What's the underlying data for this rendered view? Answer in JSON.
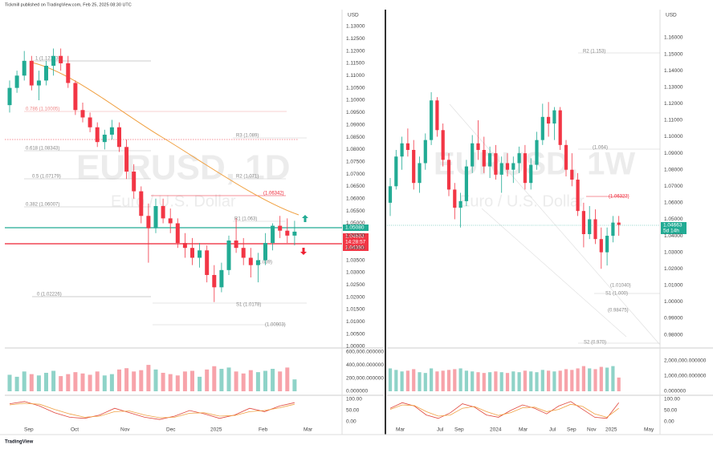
{
  "header": "Tickmill published on TradingView.com, Feb 25, 2025 08:30 UTC",
  "footer": "TradingView",
  "panes": [
    {
      "symbol": "EURUSD, 1D",
      "description": "Euro / U.S. Dollar",
      "currency": "USD",
      "ylim": [
        1.0,
        1.1368
      ],
      "price_axis": [
        "1.13000",
        "1.12500",
        "1.12000",
        "1.11500",
        "1.11000",
        "1.10500",
        "1.10000",
        "1.09500",
        "1.09000",
        "1.08500",
        "1.08000",
        "1.07500",
        "1.07000",
        "1.06500",
        "1.06000",
        "1.05500",
        "1.05000",
        "1.04500",
        "1.04000",
        "1.03500",
        "1.03000",
        "1.02500",
        "1.02000",
        "1.01500",
        "1.01000",
        "1.00500",
        "1.00000"
      ],
      "time_axis": [
        "Sep",
        "Oct",
        "Nov",
        "Dec",
        "2025",
        "Feb",
        "Mar"
      ],
      "price_labels": [
        "1.05080",
        "1.04663",
        "14:28:57",
        "1.04380"
      ],
      "annotations": [
        "1 (1.12123)",
        "0.786 (1.10005)",
        "0.618 (1.08343)",
        "0.5 (1.07179)",
        "0.382 (1.06007)",
        "0 (1.02226)",
        "R3 (1.089)",
        "R2 (1.071)",
        "(1.06342)",
        "R1 (1.063)",
        "(1.039)",
        "S1 (1.0178)",
        "(1.00903)"
      ],
      "ohlc": [
        [
          1.098,
          1.108,
          1.095,
          1.105
        ],
        [
          1.105,
          1.112,
          1.103,
          1.11
        ],
        [
          1.11,
          1.12,
          1.108,
          1.116
        ],
        [
          1.116,
          1.118,
          1.104,
          1.106
        ],
        [
          1.106,
          1.112,
          1.1,
          1.108
        ],
        [
          1.108,
          1.116,
          1.106,
          1.114
        ],
        [
          1.114,
          1.121,
          1.11,
          1.118
        ],
        [
          1.118,
          1.121,
          1.112,
          1.115
        ],
        [
          1.115,
          1.118,
          1.105,
          1.107
        ],
        [
          1.107,
          1.108,
          1.094,
          1.096
        ],
        [
          1.096,
          1.099,
          1.091,
          1.093
        ],
        [
          1.093,
          1.095,
          1.087,
          1.089
        ],
        [
          1.089,
          1.091,
          1.081,
          1.083
        ],
        [
          1.083,
          1.088,
          1.08,
          1.086
        ],
        [
          1.086,
          1.092,
          1.084,
          1.089
        ],
        [
          1.089,
          1.091,
          1.079,
          1.081
        ],
        [
          1.081,
          1.084,
          1.068,
          1.071
        ],
        [
          1.071,
          1.074,
          1.06,
          1.063
        ],
        [
          1.063,
          1.065,
          1.05,
          1.053
        ],
        [
          1.053,
          1.058,
          1.034,
          1.048
        ],
        [
          1.048,
          1.06,
          1.046,
          1.057
        ],
        [
          1.057,
          1.06,
          1.05,
          1.052
        ],
        [
          1.052,
          1.056,
          1.046,
          1.05
        ],
        [
          1.05,
          1.052,
          1.04,
          1.042
        ],
        [
          1.042,
          1.046,
          1.036,
          1.04
        ],
        [
          1.04,
          1.044,
          1.033,
          1.036
        ],
        [
          1.036,
          1.042,
          1.032,
          1.039
        ],
        [
          1.039,
          1.041,
          1.026,
          1.029
        ],
        [
          1.029,
          1.033,
          1.018,
          1.024
        ],
        [
          1.024,
          1.034,
          1.022,
          1.031
        ],
        [
          1.031,
          1.045,
          1.029,
          1.043
        ],
        [
          1.043,
          1.052,
          1.038,
          1.04
        ],
        [
          1.04,
          1.044,
          1.033,
          1.036
        ],
        [
          1.036,
          1.04,
          1.028,
          1.033
        ],
        [
          1.033,
          1.038,
          1.026,
          1.035
        ],
        [
          1.035,
          1.046,
          1.033,
          1.042
        ],
        [
          1.042,
          1.05,
          1.039,
          1.049
        ],
        [
          1.049,
          1.053,
          1.044,
          1.047
        ],
        [
          1.047,
          1.052,
          1.042,
          1.045
        ],
        [
          1.045,
          1.051,
          1.041,
          1.0466
        ]
      ],
      "volume_axis": [
        "600,000.000000",
        "400,000.000000",
        "200,000.000000",
        "0.000000"
      ],
      "vlim": [
        0,
        620000
      ],
      "volumes": [
        250000,
        220000,
        300000,
        260000,
        240000,
        280000,
        310000,
        230000,
        260000,
        290000,
        270000,
        250000,
        300000,
        240000,
        260000,
        330000,
        350000,
        300000,
        320000,
        400000,
        330000,
        280000,
        260000,
        240000,
        300000,
        310000,
        220000,
        330000,
        380000,
        340000,
        360000,
        300000,
        270000,
        320000,
        290000,
        310000,
        340000,
        300000,
        360000,
        180000
      ],
      "oscillator_axis": [
        "100.00",
        "50.00",
        "0.00"
      ],
      "oscillator_range": [
        0,
        100
      ],
      "oscillator_k": [
        80,
        90,
        70,
        40,
        20,
        15,
        30,
        60,
        40,
        20,
        10,
        25,
        50,
        35,
        15,
        30,
        60,
        45,
        70,
        85
      ],
      "oscillator_d": [
        75,
        82,
        78,
        55,
        35,
        20,
        25,
        45,
        48,
        30,
        18,
        20,
        38,
        40,
        25,
        28,
        45,
        50,
        62,
        78
      ]
    },
    {
      "symbol": "EURUSD, 1W",
      "description": "Euro / U.S. Dollar",
      "currency": "USD",
      "ylim": [
        0.973,
        1.177
      ],
      "price_axis": [
        "1.16000",
        "1.15000",
        "1.14000",
        "1.13000",
        "1.12000",
        "1.11000",
        "1.10000",
        "1.09000",
        "1.08000",
        "1.07000",
        "1.06000",
        "1.05000",
        "1.04000",
        "1.03000",
        "1.02000",
        "1.01000",
        "1.00000",
        "0.99000",
        "0.98000"
      ],
      "time_axis": [
        "Mar",
        "Jul",
        "Sep",
        "2024",
        "Mar",
        "Jul",
        "Sep",
        "Nov",
        "2025",
        "May"
      ],
      "price_labels": [
        "1.04663",
        "5d 14h"
      ],
      "annotations": [
        "R2 (1.153)",
        "(1.064)",
        "(1.06323)",
        "(1.01040)",
        "S1 (1.000)",
        "(0.98475)",
        "S2 (0.970)"
      ],
      "ohlc": [
        [
          1.06,
          1.075,
          1.052,
          1.07
        ],
        [
          1.07,
          1.092,
          1.068,
          1.088
        ],
        [
          1.088,
          1.1,
          1.08,
          1.096
        ],
        [
          1.096,
          1.105,
          1.088,
          1.092
        ],
        [
          1.092,
          1.098,
          1.068,
          1.072
        ],
        [
          1.072,
          1.088,
          1.066,
          1.084
        ],
        [
          1.084,
          1.102,
          1.08,
          1.098
        ],
        [
          1.098,
          1.127,
          1.095,
          1.122
        ],
        [
          1.122,
          1.124,
          1.1,
          1.104
        ],
        [
          1.104,
          1.108,
          1.082,
          1.086
        ],
        [
          1.086,
          1.09,
          1.064,
          1.068
        ],
        [
          1.068,
          1.072,
          1.05,
          1.057
        ],
        [
          1.057,
          1.066,
          1.045,
          1.061
        ],
        [
          1.061,
          1.086,
          1.058,
          1.082
        ],
        [
          1.082,
          1.101,
          1.078,
          1.096
        ],
        [
          1.096,
          1.11,
          1.086,
          1.092
        ],
        [
          1.092,
          1.1,
          1.078,
          1.082
        ],
        [
          1.082,
          1.094,
          1.075,
          1.09
        ],
        [
          1.09,
          1.095,
          1.074,
          1.077
        ],
        [
          1.077,
          1.088,
          1.066,
          1.084
        ],
        [
          1.084,
          1.09,
          1.076,
          1.08
        ],
        [
          1.08,
          1.088,
          1.072,
          1.084
        ],
        [
          1.084,
          1.094,
          1.078,
          1.09
        ],
        [
          1.09,
          1.095,
          1.068,
          1.072
        ],
        [
          1.072,
          1.087,
          1.068,
          1.083
        ],
        [
          1.083,
          1.103,
          1.08,
          1.098
        ],
        [
          1.098,
          1.12,
          1.095,
          1.112
        ],
        [
          1.112,
          1.121,
          1.1,
          1.108
        ],
        [
          1.108,
          1.118,
          1.098,
          1.116
        ],
        [
          1.116,
          1.118,
          1.092,
          1.095
        ],
        [
          1.095,
          1.098,
          1.076,
          1.08
        ],
        [
          1.08,
          1.09,
          1.07,
          1.074
        ],
        [
          1.074,
          1.078,
          1.052,
          1.055
        ],
        [
          1.055,
          1.06,
          1.033,
          1.041
        ],
        [
          1.041,
          1.058,
          1.038,
          1.05
        ],
        [
          1.05,
          1.056,
          1.035,
          1.038
        ],
        [
          1.038,
          1.045,
          1.02,
          1.03
        ],
        [
          1.03,
          1.045,
          1.022,
          1.04
        ],
        [
          1.04,
          1.052,
          1.036,
          1.048
        ],
        [
          1.048,
          1.052,
          1.04,
          1.0466
        ]
      ],
      "volume_axis": [
        "2,000,000.000000",
        "1,000,000.000000",
        "0.000000"
      ],
      "vlim": [
        0,
        2680000
      ],
      "volumes": [
        1500000,
        1400000,
        1300000,
        1350000,
        1450000,
        1250000,
        1200000,
        1500000,
        1300000,
        1350000,
        1400000,
        1450000,
        1500000,
        1350000,
        1300000,
        1250000,
        1200000,
        1250000,
        1300000,
        1250000,
        1200000,
        1300000,
        1250000,
        1350000,
        1300000,
        1250000,
        1400000,
        1350000,
        1300000,
        1350000,
        1450000,
        1400000,
        1500000,
        1650000,
        1500000,
        1450000,
        1600000,
        1550000,
        1650000,
        900000
      ],
      "oscillator_axis": [
        "100.00",
        "50.00",
        "0.00"
      ],
      "oscillator_range": [
        0,
        100
      ],
      "oscillator_k": [
        60,
        85,
        70,
        30,
        15,
        40,
        80,
        65,
        30,
        20,
        50,
        75,
        60,
        35,
        70,
        90,
        55,
        20,
        15,
        85
      ],
      "oscillator_d": [
        55,
        75,
        72,
        45,
        25,
        30,
        60,
        68,
        45,
        28,
        40,
        62,
        65,
        45,
        55,
        78,
        68,
        35,
        20,
        60
      ]
    }
  ]
}
